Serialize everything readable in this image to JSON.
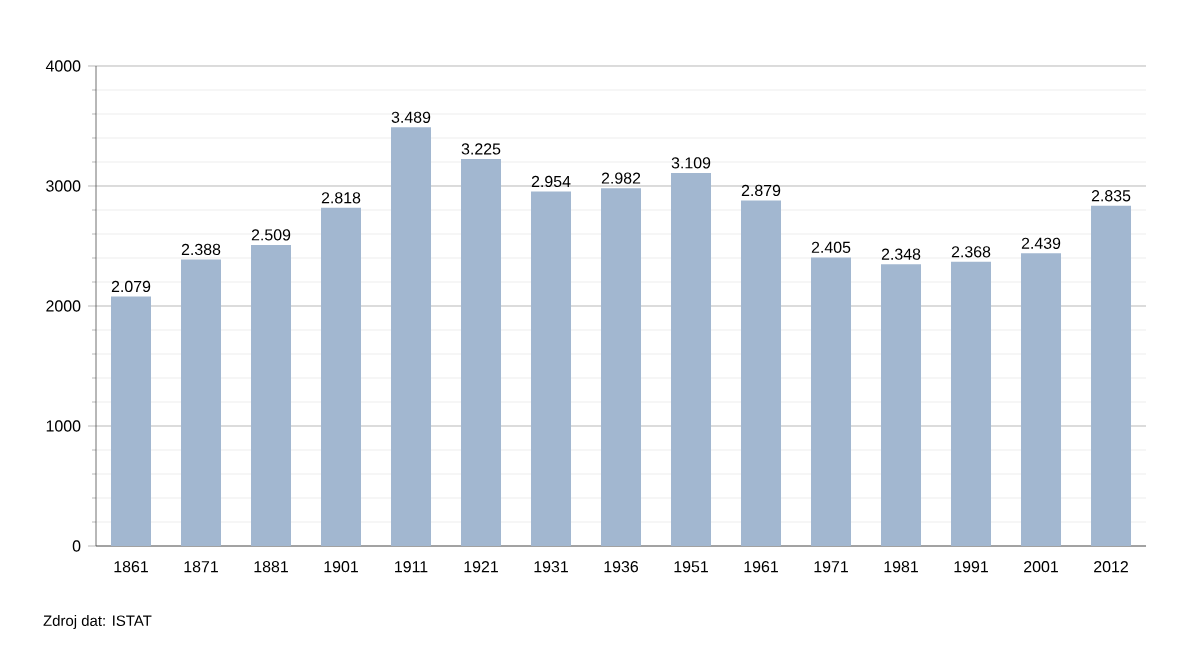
{
  "chart_data": {
    "type": "bar",
    "categories": [
      "1861",
      "1871",
      "1881",
      "1901",
      "1911",
      "1921",
      "1931",
      "1936",
      "1951",
      "1961",
      "1971",
      "1981",
      "1991",
      "2001",
      "2012"
    ],
    "values": [
      2079,
      2388,
      2509,
      2818,
      3489,
      3225,
      2954,
      2982,
      3109,
      2879,
      2405,
      2348,
      2368,
      2439,
      2835
    ],
    "value_labels": [
      "2.079",
      "2.388",
      "2.509",
      "2.818",
      "3.489",
      "3.225",
      "2.954",
      "2.982",
      "3.109",
      "2.879",
      "2.405",
      "2.348",
      "2.368",
      "2.439",
      "2.835"
    ],
    "color": "#a2b7d0",
    "ylim": [
      0,
      4000
    ],
    "yticks": [
      0,
      1000,
      2000,
      3000,
      4000
    ],
    "grid": "y",
    "annotations": [
      "Zdroj dat: ISTAT"
    ]
  }
}
